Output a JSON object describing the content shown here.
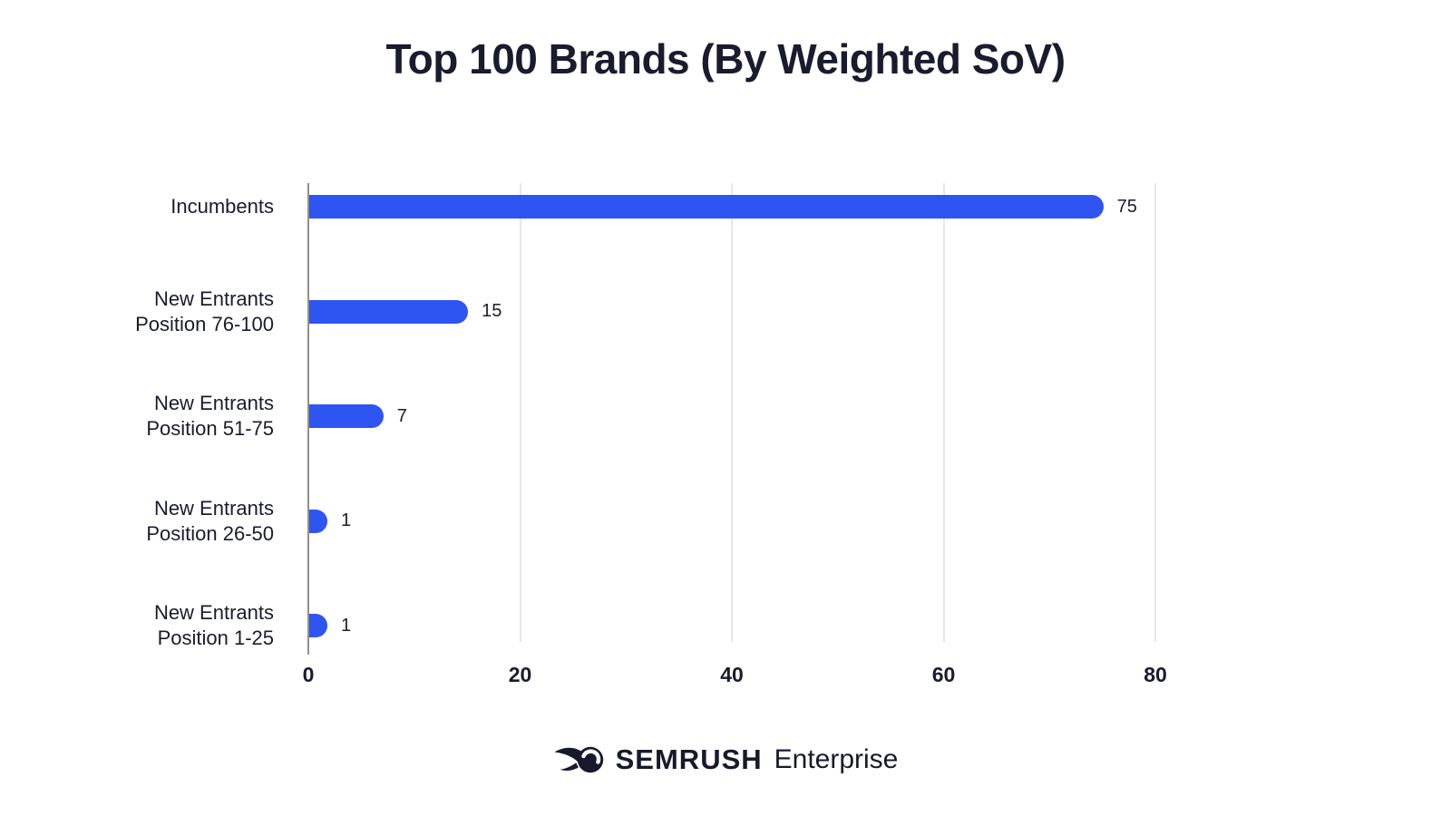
{
  "chart_data": {
    "type": "bar",
    "orientation": "horizontal",
    "title": "Top 100 Brands (By Weighted SoV)",
    "categories": [
      "Incumbents",
      "New Entrants Position 76-100",
      "New Entrants Position 51-75",
      "New Entrants Position 26-50",
      "New Entrants Position 1-25"
    ],
    "category_lines": [
      [
        "Incumbents"
      ],
      [
        "New Entrants",
        "Position 76-100"
      ],
      [
        "New Entrants",
        "Position 51-75"
      ],
      [
        "New Entrants",
        "Position 26-50"
      ],
      [
        "New Entrants",
        "Position 1-25"
      ]
    ],
    "values": [
      75,
      15,
      7,
      1,
      1
    ],
    "value_labels": [
      "75",
      "15",
      "7",
      "1",
      "1"
    ],
    "x_ticks": [
      0,
      20,
      40,
      60,
      80
    ],
    "xlim": [
      0,
      80
    ],
    "xlabel": "",
    "ylabel": "",
    "grid": "vertical-gridlines",
    "legend": "none",
    "bar_color": "#2e54f2",
    "text_color": "#1a1b2e",
    "gridline_color": "#e8e8e8",
    "axis_line_color": "#8f8f8f",
    "background": "#ffffff"
  },
  "footer_logo": {
    "icon": "semrush-comet-icon",
    "brand": "SEMRUSH",
    "product": "Enterprise",
    "color": "#181a2c"
  }
}
